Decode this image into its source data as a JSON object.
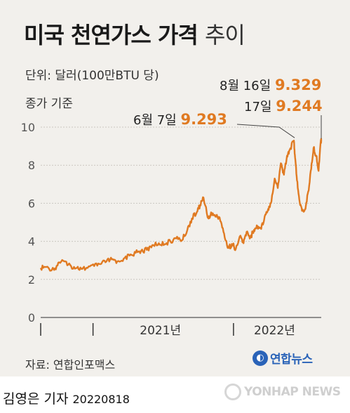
{
  "title": {
    "bold": "미국 천연가스 가격",
    "light": "추이"
  },
  "unit_note": "단위: 달러(100만BTU 당)",
  "basis_note": "종가 기준",
  "annotations": [
    {
      "label": "6월 7일",
      "value": "9.293"
    },
    {
      "label": "8월 16일",
      "value": "9.329"
    },
    {
      "label": "17일",
      "value": "9.244"
    }
  ],
  "source": "자료: 연합인포맥스",
  "logo_text": "연합뉴스",
  "credit": {
    "name": "김영은 기자",
    "date": "20220818"
  },
  "watermark": "YONHAP NEWS",
  "colors": {
    "line": "#e07a22",
    "value": "#e07a22",
    "background": "#f2f0ec",
    "logo": "#2a63b8"
  },
  "chart_data": {
    "type": "line",
    "title": "미국 천연가스 가격",
    "ylabel": "달러(100만BTU 당)",
    "ylim": [
      0,
      10
    ],
    "yticks": [
      0,
      2,
      4,
      6,
      8,
      10
    ],
    "xlim": [
      "2020-08-18",
      "2022-08-17"
    ],
    "xticks": [
      "2021년",
      "2022년"
    ],
    "series": [
      {
        "x": [
          "2020-08-18",
          "2020-09-01",
          "2020-09-22",
          "2020-10-05",
          "2020-10-21",
          "2020-11-05",
          "2020-11-20",
          "2020-12-04",
          "2020-12-18",
          "2021-01-04",
          "2021-01-20",
          "2021-02-05",
          "2021-02-19",
          "2021-03-05",
          "2021-03-22",
          "2021-04-06",
          "2021-04-22",
          "2021-05-06",
          "2021-05-21",
          "2021-06-04",
          "2021-06-21",
          "2021-07-06",
          "2021-07-21",
          "2021-08-05",
          "2021-08-20",
          "2021-09-03",
          "2021-09-15",
          "2021-09-28",
          "2021-10-06",
          "2021-10-15",
          "2021-10-28",
          "2021-11-05",
          "2021-11-15",
          "2021-11-26",
          "2021-12-06",
          "2021-12-15",
          "2021-12-21",
          "2021-12-29",
          "2022-01-07",
          "2022-01-19",
          "2022-01-27",
          "2022-02-04",
          "2022-02-14",
          "2022-02-23",
          "2022-03-04",
          "2022-03-14",
          "2022-03-23",
          "2022-04-01",
          "2022-04-08",
          "2022-04-18",
          "2022-04-26",
          "2022-05-04",
          "2022-05-12",
          "2022-05-20",
          "2022-05-27",
          "2022-06-07",
          "2022-06-10",
          "2022-06-15",
          "2022-06-21",
          "2022-06-28",
          "2022-07-07",
          "2022-07-14",
          "2022-07-22",
          "2022-07-28",
          "2022-08-04",
          "2022-08-10",
          "2022-08-16",
          "2022-08-17"
        ],
        "y": [
          2.6,
          2.65,
          2.5,
          2.9,
          2.95,
          2.7,
          2.6,
          2.55,
          2.6,
          2.7,
          2.8,
          2.95,
          3.05,
          2.95,
          3.1,
          3.25,
          3.4,
          3.5,
          3.55,
          3.8,
          3.9,
          3.85,
          4.0,
          4.15,
          4.05,
          4.6,
          5.2,
          5.55,
          5.9,
          6.3,
          5.2,
          5.5,
          5.3,
          5.25,
          4.5,
          3.8,
          3.7,
          3.85,
          3.6,
          4.3,
          3.9,
          4.5,
          4.2,
          4.6,
          4.8,
          4.65,
          5.3,
          5.7,
          6.0,
          7.3,
          6.8,
          8.1,
          7.5,
          8.5,
          8.8,
          9.293,
          8.4,
          7.2,
          6.2,
          5.6,
          5.7,
          6.6,
          7.8,
          8.9,
          8.5,
          7.7,
          9.329,
          9.244
        ]
      }
    ]
  }
}
